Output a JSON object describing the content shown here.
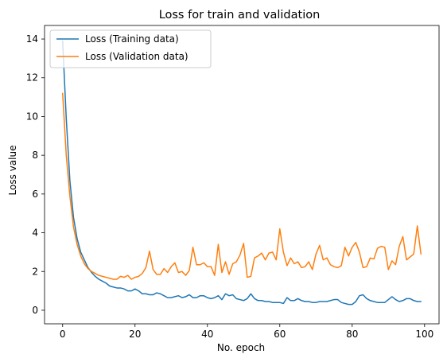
{
  "chart_data": {
    "type": "line",
    "title": "Loss for train and validation",
    "xlabel": "No. epoch",
    "ylabel": "Loss value",
    "xlim": [
      -5,
      104
    ],
    "ylim": [
      -0.7,
      14.7
    ],
    "xticks": [
      0,
      20,
      40,
      60,
      80,
      100
    ],
    "yticks": [
      0,
      2,
      4,
      6,
      8,
      10,
      12,
      14
    ],
    "grid": false,
    "legend_position": "top-left",
    "x": [
      0,
      1,
      2,
      3,
      4,
      5,
      6,
      7,
      8,
      9,
      10,
      11,
      12,
      13,
      14,
      15,
      16,
      17,
      18,
      19,
      20,
      21,
      22,
      23,
      24,
      25,
      26,
      27,
      28,
      29,
      30,
      31,
      32,
      33,
      34,
      35,
      36,
      37,
      38,
      39,
      40,
      41,
      42,
      43,
      44,
      45,
      46,
      47,
      48,
      49,
      50,
      51,
      52,
      53,
      54,
      55,
      56,
      57,
      58,
      59,
      60,
      61,
      62,
      63,
      64,
      65,
      66,
      67,
      68,
      69,
      70,
      71,
      72,
      73,
      74,
      75,
      76,
      77,
      78,
      79,
      80,
      81,
      82,
      83,
      84,
      85,
      86,
      87,
      88,
      89,
      90,
      91,
      92,
      93,
      94,
      95,
      96,
      97,
      98,
      99
    ],
    "series": [
      {
        "name": "Loss (Training data)",
        "color": "#1f77b4",
        "values": [
          13.9,
          9.9,
          6.7,
          4.8,
          3.7,
          3.0,
          2.6,
          2.2,
          1.95,
          1.75,
          1.6,
          1.5,
          1.4,
          1.25,
          1.2,
          1.15,
          1.15,
          1.1,
          1.0,
          1.0,
          1.1,
          1.0,
          0.85,
          0.85,
          0.8,
          0.8,
          0.9,
          0.85,
          0.75,
          0.65,
          0.65,
          0.7,
          0.75,
          0.65,
          0.7,
          0.8,
          0.65,
          0.65,
          0.75,
          0.75,
          0.65,
          0.6,
          0.65,
          0.75,
          0.55,
          0.85,
          0.75,
          0.8,
          0.6,
          0.55,
          0.5,
          0.6,
          0.85,
          0.6,
          0.5,
          0.5,
          0.45,
          0.45,
          0.4,
          0.4,
          0.4,
          0.35,
          0.65,
          0.5,
          0.5,
          0.6,
          0.5,
          0.45,
          0.45,
          0.4,
          0.4,
          0.45,
          0.45,
          0.45,
          0.5,
          0.55,
          0.55,
          0.4,
          0.35,
          0.3,
          0.3,
          0.45,
          0.75,
          0.8,
          0.6,
          0.5,
          0.45,
          0.4,
          0.4,
          0.4,
          0.55,
          0.7,
          0.55,
          0.45,
          0.5,
          0.6,
          0.6,
          0.5,
          0.45,
          0.45
        ]
      },
      {
        "name": "Loss (Validation data)",
        "color": "#ff7f0e",
        "values": [
          11.2,
          8.0,
          5.9,
          4.3,
          3.4,
          2.8,
          2.4,
          2.15,
          2.0,
          1.9,
          1.8,
          1.75,
          1.7,
          1.65,
          1.6,
          1.6,
          1.75,
          1.7,
          1.8,
          1.6,
          1.7,
          1.75,
          1.9,
          2.2,
          3.05,
          2.1,
          1.85,
          1.85,
          2.15,
          1.95,
          2.25,
          2.45,
          1.95,
          2.0,
          1.8,
          2.05,
          3.25,
          2.35,
          2.35,
          2.45,
          2.25,
          2.25,
          1.8,
          3.4,
          1.95,
          2.5,
          1.85,
          2.4,
          2.5,
          2.85,
          3.45,
          1.7,
          1.75,
          2.7,
          2.8,
          2.95,
          2.6,
          2.95,
          3.0,
          2.6,
          4.2,
          3.0,
          2.3,
          2.7,
          2.4,
          2.5,
          2.2,
          2.25,
          2.5,
          2.1,
          2.9,
          3.35,
          2.6,
          2.7,
          2.35,
          2.25,
          2.2,
          2.3,
          3.25,
          2.8,
          3.25,
          3.5,
          3.0,
          2.2,
          2.25,
          2.7,
          2.65,
          3.2,
          3.3,
          3.25,
          2.1,
          2.55,
          2.35,
          3.3,
          3.8,
          2.6,
          2.75,
          2.9,
          4.35,
          2.9
        ]
      }
    ]
  }
}
